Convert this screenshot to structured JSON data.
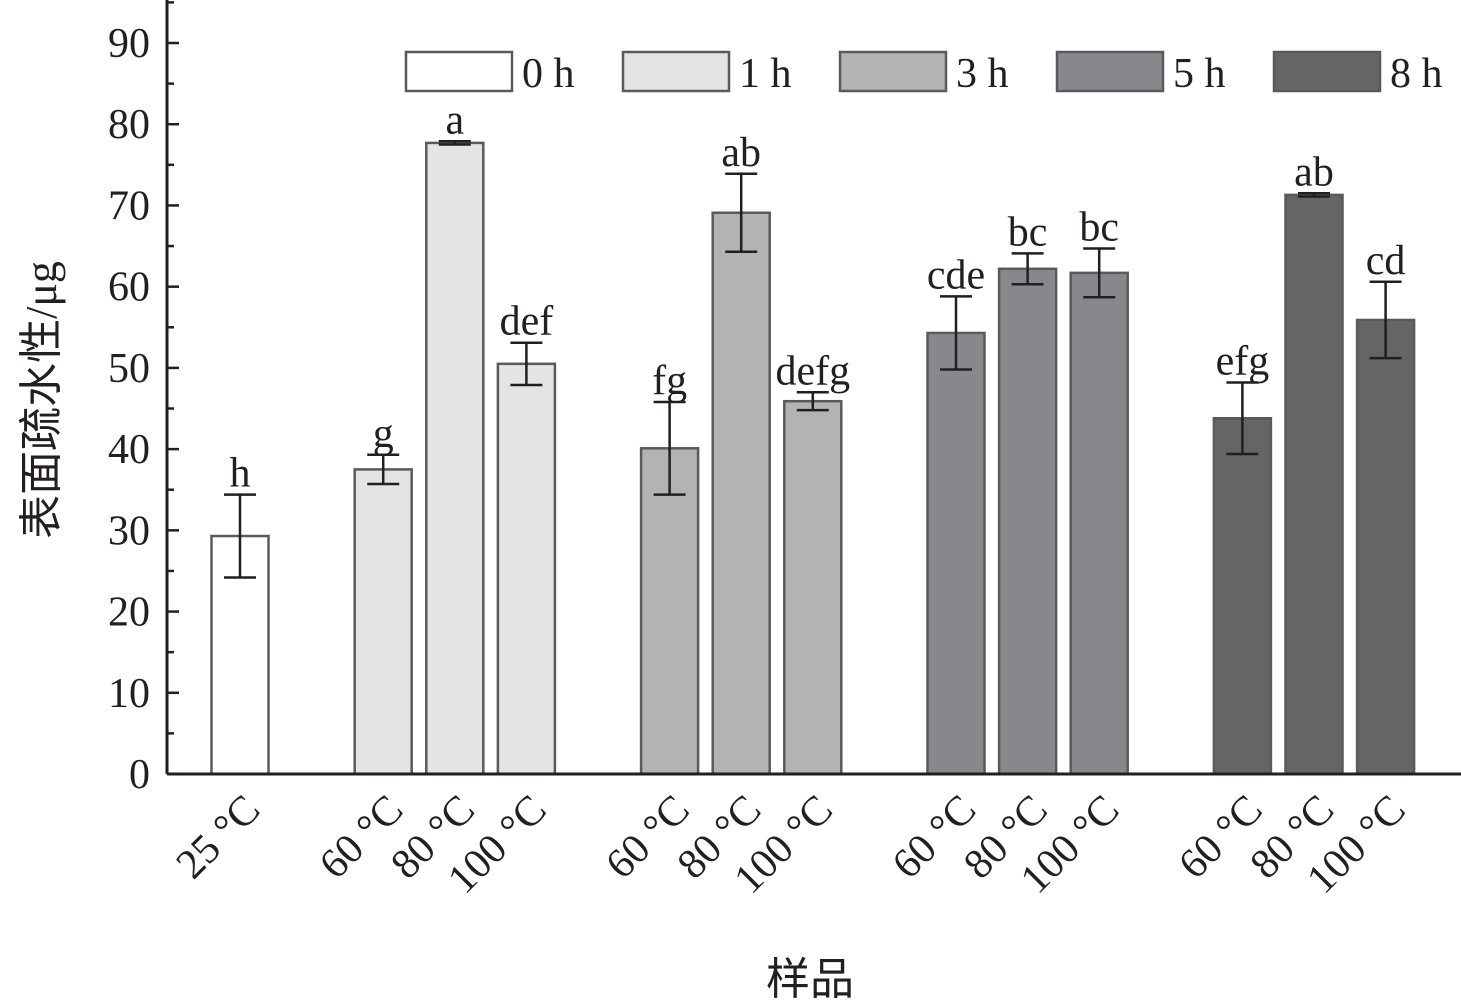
{
  "chart_data": {
    "type": "bar",
    "title": "",
    "xlabel": "样品",
    "ylabel": "表面疏水性/μg",
    "ylim": [
      0,
      95
    ],
    "yticks": [
      0,
      10,
      20,
      30,
      40,
      50,
      60,
      70,
      80,
      90
    ],
    "grid": false,
    "legend_position": "top-right",
    "legend": [
      {
        "name": "0 h",
        "color": "#ffffff"
      },
      {
        "name": "1 h",
        "color": "#e3e4e6"
      },
      {
        "name": "3 h",
        "color": "#b3b3b3"
      },
      {
        "name": "5 h",
        "color": "#88888c"
      },
      {
        "name": "8 h",
        "color": "#646665"
      }
    ],
    "bars": [
      {
        "category": "25 °C",
        "series": "0 h",
        "value": 29.3,
        "error": 5.1,
        "label": "h"
      },
      {
        "category": "60 °C",
        "series": "1 h",
        "value": 37.5,
        "error": 1.8,
        "label": "g"
      },
      {
        "category": "80 °C",
        "series": "1 h",
        "value": 77.7,
        "error": 0.2,
        "label": "a"
      },
      {
        "category": "100 °C",
        "series": "1 h",
        "value": 50.5,
        "error": 2.6,
        "label": "def"
      },
      {
        "category": "60 °C",
        "series": "3 h",
        "value": 40.1,
        "error": 5.7,
        "label": "fg"
      },
      {
        "category": "80 °C",
        "series": "3 h",
        "value": 69.1,
        "error": 4.8,
        "label": "ab"
      },
      {
        "category": "100 °C",
        "series": "3 h",
        "value": 45.9,
        "error": 1.1,
        "label": "defg"
      },
      {
        "category": "60 °C",
        "series": "5 h",
        "value": 54.3,
        "error": 4.5,
        "label": "cde"
      },
      {
        "category": "80 °C",
        "series": "5 h",
        "value": 62.2,
        "error": 1.9,
        "label": "bc"
      },
      {
        "category": "100 °C",
        "series": "5 h",
        "value": 61.7,
        "error": 3.0,
        "label": "bc"
      },
      {
        "category": "60 °C",
        "series": "8 h",
        "value": 43.8,
        "error": 4.4,
        "label": "efg"
      },
      {
        "category": "80 °C",
        "series": "8 h",
        "value": 71.3,
        "error": 0.2,
        "label": "ab"
      },
      {
        "category": "100 °C",
        "series": "8 h",
        "value": 55.9,
        "error": 4.7,
        "label": "cd"
      }
    ]
  }
}
